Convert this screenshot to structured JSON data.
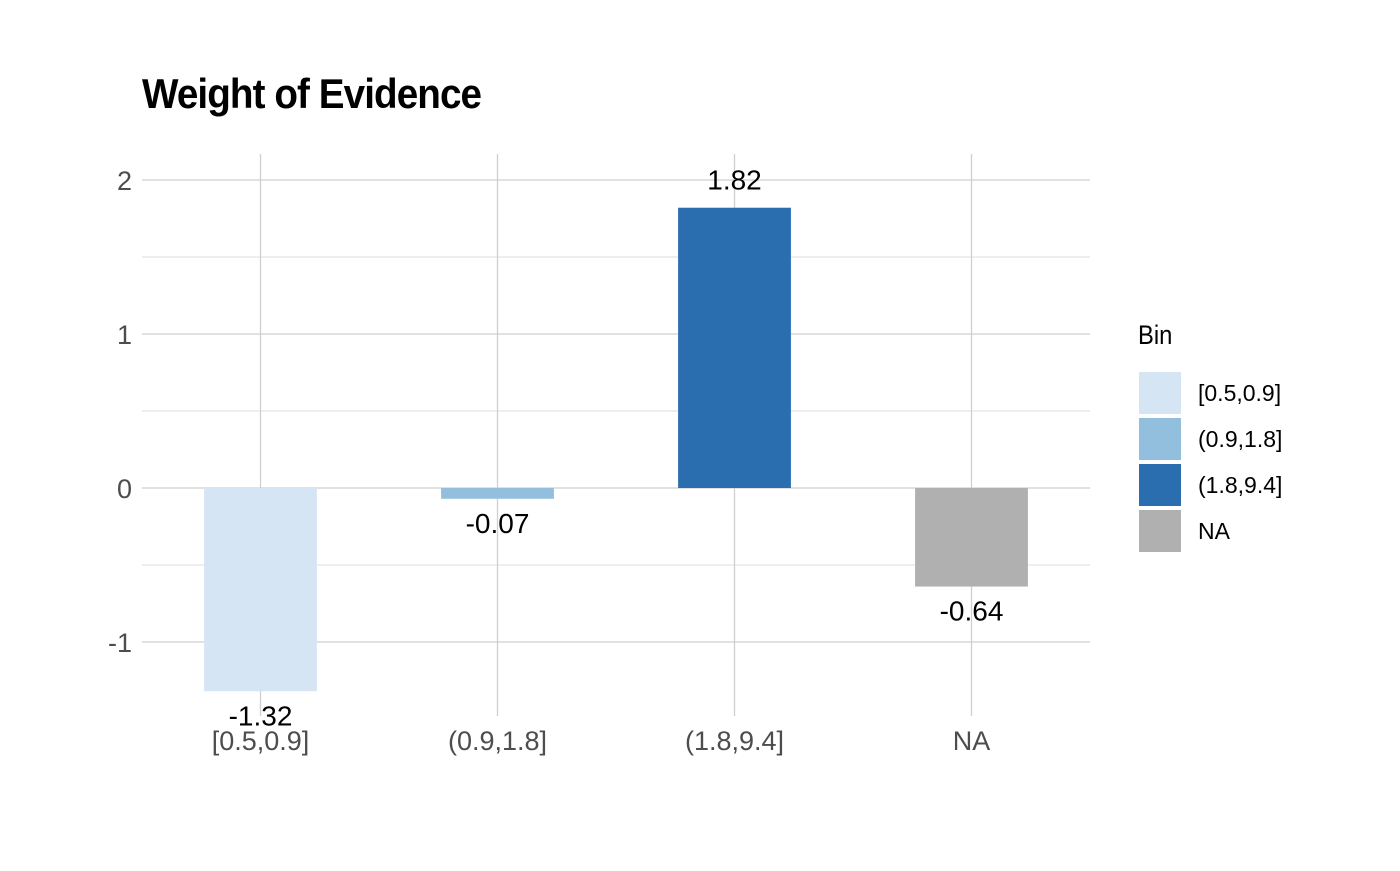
{
  "chart_data": {
    "type": "bar",
    "title": "Weight of Evidence",
    "xlabel": "",
    "ylabel": "",
    "categories": [
      "[0.5,0.9]",
      "(0.9,1.8]",
      "(1.8,9.4]",
      "NA"
    ],
    "values": [
      -1.32,
      -0.07,
      1.82,
      -0.64
    ],
    "data_labels": [
      "-1.32",
      "-0.07",
      "1.82",
      "-0.64"
    ],
    "colors": [
      "#d6e5f4",
      "#92bfdd",
      "#2a6eb0",
      "#b0b0b0"
    ],
    "ylim": [
      -1.47,
      2.17
    ],
    "yticks": [
      -1,
      0,
      1,
      2
    ],
    "ytick_labels": [
      "-1",
      "0",
      "1",
      "2"
    ],
    "grid": true,
    "legend": {
      "title": "Bin",
      "placement": "right",
      "entries": [
        "[0.5,0.9]",
        "(0.9,1.8]",
        "(1.8,9.4]",
        "NA"
      ]
    }
  }
}
